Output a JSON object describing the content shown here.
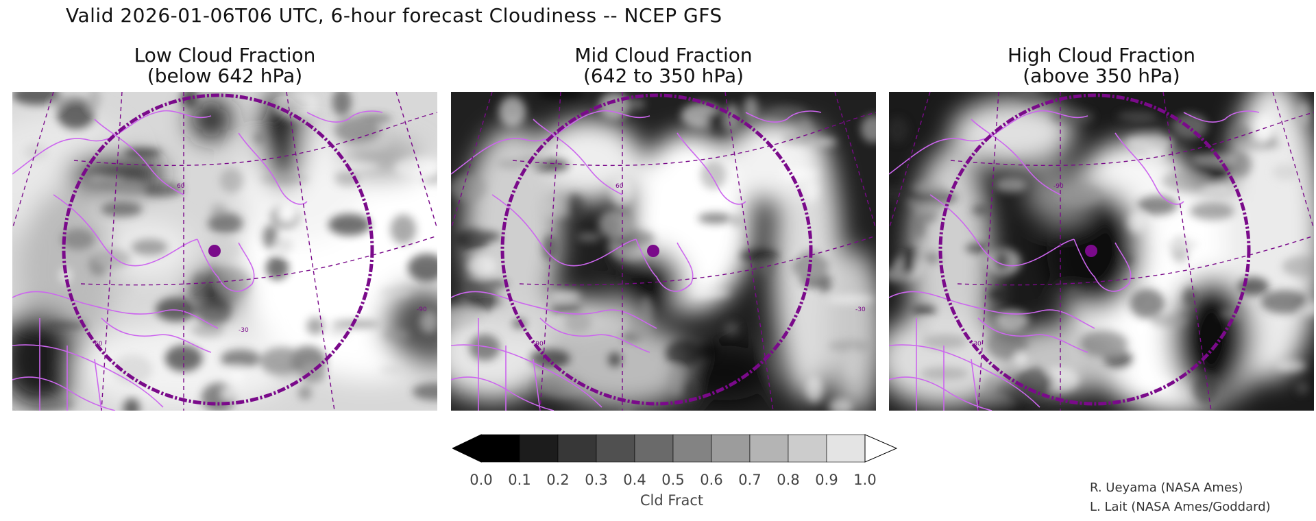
{
  "title": "Valid 2026-01-06T06 UTC, 6-hour forecast Cloudiness -- NCEP GFS",
  "panels": [
    {
      "title": "Low Cloud Fraction",
      "subtitle": "(below 642 hPa)",
      "field": "low",
      "grid_labels": [
        "60",
        "60",
        "-90",
        "-30"
      ]
    },
    {
      "title": "Mid Cloud Fraction",
      "subtitle": "(642 to 350 hPa)",
      "field": "mid",
      "grid_labels": [
        "60",
        "-90",
        "-30"
      ]
    },
    {
      "title": "High Cloud Fraction",
      "subtitle": "(above 350 hPa)",
      "field": "high",
      "grid_labels": [
        "-90",
        "-30"
      ]
    }
  ],
  "colorbar": {
    "ticks": [
      "0.0",
      "0.1",
      "0.2",
      "0.3",
      "0.4",
      "0.5",
      "0.6",
      "0.7",
      "0.8",
      "0.9",
      "1.0"
    ],
    "colors": [
      "#000000",
      "#1c1c1c",
      "#373737",
      "#505050",
      "#6a6a6a",
      "#838383",
      "#9c9c9c",
      "#b4b4b4",
      "#cccccc",
      "#e4e4e4"
    ],
    "under_color": "#000000",
    "over_color": "#ffffff",
    "units": "Cld Fract"
  },
  "overlay_colors": {
    "coast": "#cc66ee",
    "ring": "#7a0a8a",
    "marker": "#7a0a8a"
  },
  "credits": [
    "R. Ueyama (NASA Ames)",
    "L. Lait (NASA Ames/Goddard)"
  ]
}
